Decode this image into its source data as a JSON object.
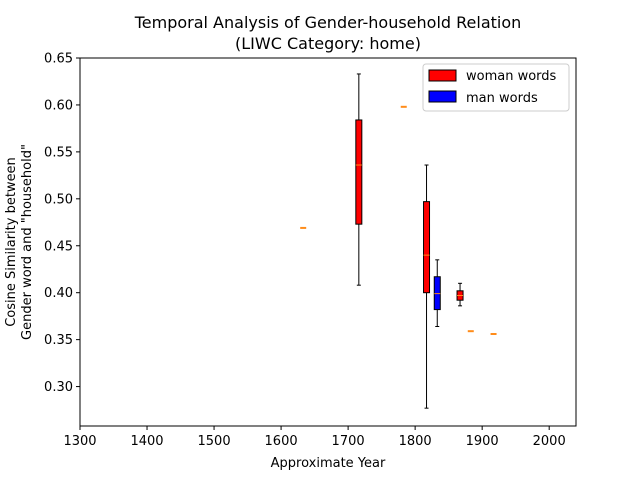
{
  "chart_data": {
    "type": "box",
    "title_line1": "Temporal Analysis of Gender-household Relation",
    "title_line2": "(LIWC Category: home)",
    "xlabel": "Approximate Year",
    "ylabel_line1": "Cosine Similarity between",
    "ylabel_line2": "Gender word and \"household\"",
    "xlim": [
      1300,
      2040
    ],
    "ylim": [
      0.258,
      0.65
    ],
    "x_ticks": [
      1300,
      1400,
      1500,
      1600,
      1700,
      1800,
      1900,
      2000
    ],
    "y_ticks": [
      0.3,
      0.35,
      0.4,
      0.45,
      0.5,
      0.55,
      0.6,
      0.65
    ],
    "y_tick_labels": [
      "0.30",
      "0.35",
      "0.40",
      "0.45",
      "0.50",
      "0.55",
      "0.60",
      "0.65"
    ],
    "legend_position": "upper right",
    "series": [
      {
        "name": "woman words",
        "color": "#ff0000",
        "boxes": [
          {
            "x": 1633,
            "min": 0.469,
            "q1": 0.469,
            "median": 0.469,
            "q3": 0.469,
            "max": 0.469
          },
          {
            "x": 1716,
            "min": 0.408,
            "q1": 0.473,
            "median": 0.536,
            "q3": 0.584,
            "max": 0.633
          },
          {
            "x": 1783,
            "min": 0.598,
            "q1": 0.598,
            "median": 0.598,
            "q3": 0.598,
            "max": 0.598
          },
          {
            "x": 1817,
            "min": 0.277,
            "q1": 0.4,
            "median": 0.44,
            "q3": 0.497,
            "max": 0.536
          },
          {
            "x": 1867,
            "min": 0.386,
            "q1": 0.392,
            "median": 0.397,
            "q3": 0.402,
            "max": 0.41
          },
          {
            "x": 1883,
            "min": 0.359,
            "q1": 0.359,
            "median": 0.359,
            "q3": 0.359,
            "max": 0.359
          },
          {
            "x": 1917,
            "min": 0.356,
            "q1": 0.356,
            "median": 0.356,
            "q3": 0.356,
            "max": 0.356
          }
        ]
      },
      {
        "name": "man words",
        "color": "#0000ff",
        "boxes": [
          {
            "x": 1833,
            "min": 0.364,
            "q1": 0.382,
            "median": 0.399,
            "q3": 0.417,
            "max": 0.435
          }
        ]
      }
    ],
    "median_color": "#ff8c1a"
  }
}
